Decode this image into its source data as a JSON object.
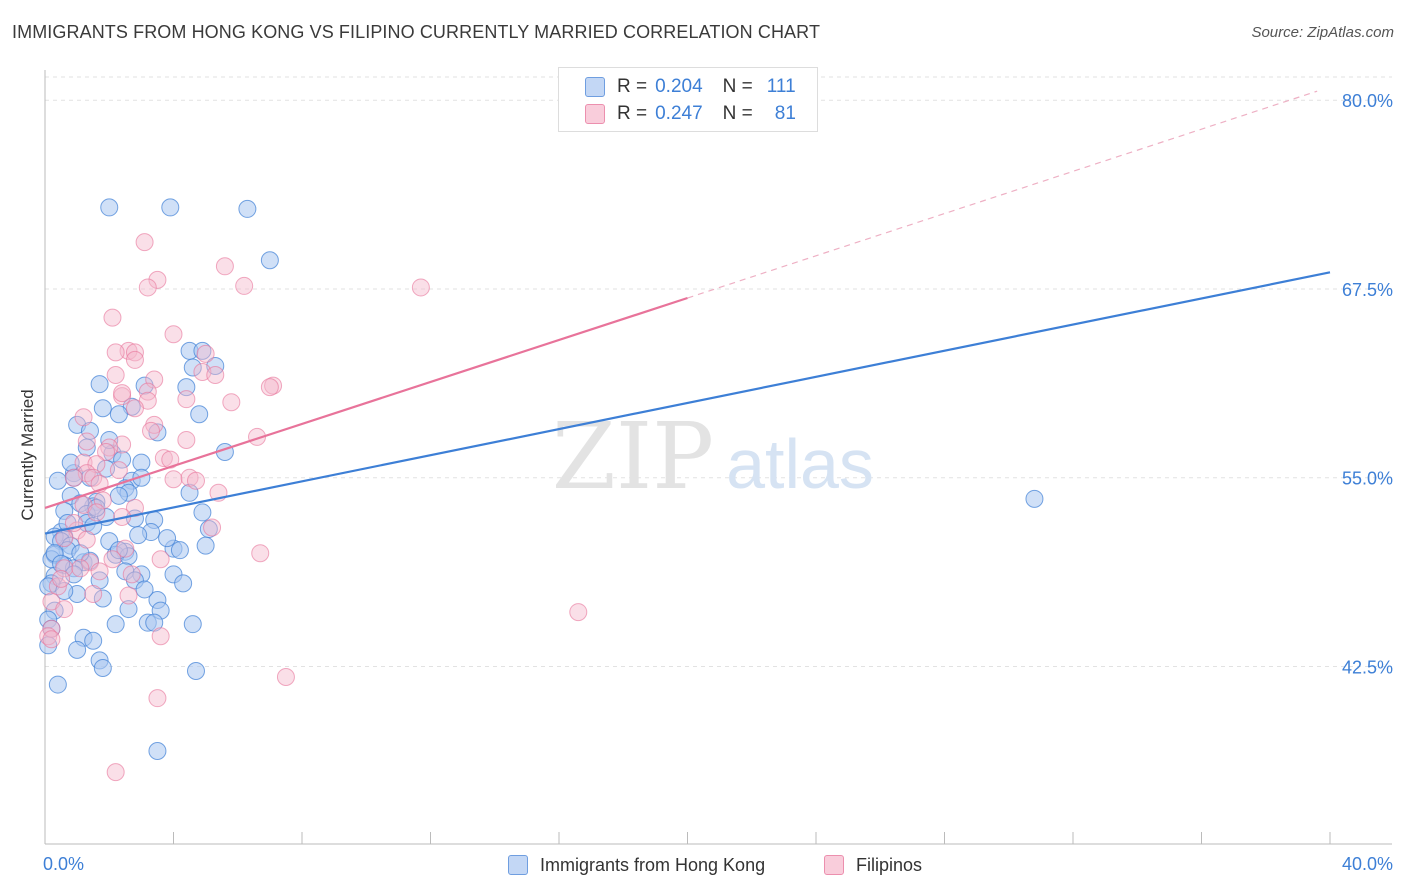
{
  "title": "IMMIGRANTS FROM HONG KONG VS FILIPINO CURRENTLY MARRIED CORRELATION CHART",
  "source": "Source: ZipAtlas.com",
  "watermark": {
    "zip": "ZIP",
    "atlas": "atlas"
  },
  "legend": {
    "series1": {
      "r_label": "R =",
      "r_value": "0.204",
      "n_label": "N =",
      "n_value": "111"
    },
    "series2": {
      "r_label": "R =",
      "r_value": "0.247",
      "n_label": "N =",
      "n_value": "81"
    }
  },
  "bottom_legend": {
    "series1": "Immigrants from Hong Kong",
    "series2": "Filipinos"
  },
  "colors": {
    "blue": "#3d7fd6",
    "blue_fill": "#a9c6f0",
    "pink": "#e8739a",
    "pink_fill": "#f5b7cb",
    "accent_text": "#3d7fd6"
  },
  "chart_data": {
    "type": "scatter",
    "title": "IMMIGRANTS FROM HONG KONG VS FILIPINO CURRENTLY MARRIED CORRELATION CHART",
    "xlabel": "",
    "ylabel": "Currently Married",
    "xlim": [
      0,
      40
    ],
    "ylim": [
      32,
      82
    ],
    "x_tick_labels": [
      "0.0%",
      "40.0%"
    ],
    "y_ticks": [
      42.5,
      55.0,
      67.5,
      80.0
    ],
    "y_tick_labels": [
      "42.5%",
      "55.0%",
      "67.5%",
      "80.0%"
    ],
    "series": [
      {
        "name": "Immigrants from Hong Kong",
        "r": 0.204,
        "n": 111,
        "trend": {
          "x": [
            0,
            40
          ],
          "y": [
            51.3,
            68.6
          ]
        },
        "points": [
          [
            2.0,
            72.9
          ],
          [
            3.9,
            72.9
          ],
          [
            6.3,
            72.8
          ],
          [
            7.0,
            69.4
          ],
          [
            4.5,
            63.4
          ],
          [
            4.9,
            63.4
          ],
          [
            5.3,
            62.4
          ],
          [
            4.6,
            62.3
          ],
          [
            3.1,
            61.1
          ],
          [
            1.7,
            61.2
          ],
          [
            2.7,
            59.7
          ],
          [
            1.8,
            59.6
          ],
          [
            2.3,
            59.2
          ],
          [
            4.8,
            59.2
          ],
          [
            1.0,
            58.5
          ],
          [
            1.4,
            58.1
          ],
          [
            2.1,
            56.6
          ],
          [
            5.6,
            56.7
          ],
          [
            2.4,
            56.2
          ],
          [
            1.3,
            57.0
          ],
          [
            3.0,
            56.0
          ],
          [
            0.9,
            55.3
          ],
          [
            0.9,
            55.0
          ],
          [
            2.7,
            54.8
          ],
          [
            3.0,
            55.0
          ],
          [
            4.5,
            54.0
          ],
          [
            2.5,
            54.3
          ],
          [
            2.6,
            54.0
          ],
          [
            0.8,
            53.8
          ],
          [
            1.6,
            53.4
          ],
          [
            1.5,
            53.1
          ],
          [
            1.1,
            53.3
          ],
          [
            0.6,
            52.8
          ],
          [
            1.3,
            52.6
          ],
          [
            2.8,
            52.3
          ],
          [
            4.9,
            52.7
          ],
          [
            1.9,
            52.4
          ],
          [
            3.4,
            52.2
          ],
          [
            1.3,
            52.0
          ],
          [
            1.5,
            51.8
          ],
          [
            5.1,
            51.6
          ],
          [
            3.3,
            51.4
          ],
          [
            0.5,
            51.4
          ],
          [
            0.6,
            51.1
          ],
          [
            0.3,
            51.1
          ],
          [
            0.5,
            50.8
          ],
          [
            0.8,
            50.5
          ],
          [
            0.7,
            50.2
          ],
          [
            0.3,
            49.9
          ],
          [
            2.0,
            50.8
          ],
          [
            2.5,
            50.1
          ],
          [
            2.2,
            49.9
          ],
          [
            2.6,
            49.8
          ],
          [
            4.0,
            50.3
          ],
          [
            4.2,
            50.2
          ],
          [
            0.2,
            49.6
          ],
          [
            1.2,
            49.4
          ],
          [
            1.4,
            49.5
          ],
          [
            0.6,
            49.2
          ],
          [
            0.9,
            49.0
          ],
          [
            2.5,
            48.8
          ],
          [
            3.0,
            48.6
          ],
          [
            2.8,
            48.2
          ],
          [
            0.3,
            48.5
          ],
          [
            0.2,
            48.0
          ],
          [
            4.0,
            48.6
          ],
          [
            1.0,
            47.3
          ],
          [
            1.8,
            47.0
          ],
          [
            3.5,
            46.9
          ],
          [
            3.6,
            46.2
          ],
          [
            0.1,
            47.8
          ],
          [
            0.3,
            46.2
          ],
          [
            0.1,
            45.6
          ],
          [
            2.2,
            45.3
          ],
          [
            3.2,
            45.4
          ],
          [
            3.4,
            45.4
          ],
          [
            4.6,
            45.3
          ],
          [
            1.2,
            44.4
          ],
          [
            1.0,
            43.6
          ],
          [
            0.1,
            43.9
          ],
          [
            1.7,
            42.9
          ],
          [
            1.8,
            42.4
          ],
          [
            4.7,
            42.2
          ],
          [
            0.4,
            41.3
          ],
          [
            3.5,
            36.9
          ],
          [
            30.8,
            53.6
          ],
          [
            0.3,
            50.0
          ],
          [
            0.5,
            49.3
          ],
          [
            1.6,
            53.0
          ],
          [
            2.3,
            50.2
          ],
          [
            2.9,
            51.2
          ],
          [
            3.8,
            51.0
          ],
          [
            0.7,
            52.0
          ],
          [
            1.1,
            50.0
          ],
          [
            1.4,
            55.0
          ],
          [
            2.0,
            57.5
          ],
          [
            3.5,
            58.0
          ],
          [
            4.4,
            61.0
          ],
          [
            1.9,
            55.6
          ],
          [
            0.4,
            54.8
          ],
          [
            2.3,
            53.8
          ],
          [
            0.9,
            48.6
          ],
          [
            3.1,
            47.6
          ],
          [
            1.7,
            48.2
          ],
          [
            0.6,
            47.5
          ],
          [
            4.3,
            48.0
          ],
          [
            5.0,
            50.5
          ],
          [
            2.6,
            46.3
          ],
          [
            1.5,
            44.2
          ],
          [
            0.2,
            45.0
          ],
          [
            0.8,
            56.0
          ]
        ]
      },
      {
        "name": "Filipinos",
        "r": 0.247,
        "n": 81,
        "trend_solid": {
          "x": [
            0,
            20
          ],
          "y": [
            53.0,
            66.9
          ]
        },
        "trend_dashed": {
          "x": [
            20,
            39.6
          ],
          "y": [
            66.9,
            80.6
          ]
        },
        "points": [
          [
            3.1,
            70.6
          ],
          [
            5.6,
            69.0
          ],
          [
            3.5,
            68.1
          ],
          [
            3.2,
            67.6
          ],
          [
            6.2,
            67.7
          ],
          [
            11.7,
            67.6
          ],
          [
            2.1,
            65.6
          ],
          [
            4.0,
            64.5
          ],
          [
            2.6,
            63.4
          ],
          [
            2.2,
            63.3
          ],
          [
            2.8,
            63.3
          ],
          [
            2.8,
            62.8
          ],
          [
            5.0,
            63.2
          ],
          [
            4.9,
            62.0
          ],
          [
            2.2,
            61.8
          ],
          [
            3.4,
            61.5
          ],
          [
            7.1,
            61.1
          ],
          [
            7.0,
            61.0
          ],
          [
            3.2,
            60.7
          ],
          [
            2.4,
            60.4
          ],
          [
            4.4,
            60.2
          ],
          [
            5.8,
            60.0
          ],
          [
            3.2,
            60.1
          ],
          [
            2.8,
            59.6
          ],
          [
            1.2,
            59.0
          ],
          [
            3.4,
            58.5
          ],
          [
            3.3,
            58.1
          ],
          [
            6.6,
            57.7
          ],
          [
            4.4,
            57.5
          ],
          [
            2.4,
            57.2
          ],
          [
            1.3,
            57.4
          ],
          [
            2.0,
            57.0
          ],
          [
            1.9,
            56.7
          ],
          [
            3.7,
            56.3
          ],
          [
            1.2,
            56.0
          ],
          [
            1.6,
            55.9
          ],
          [
            2.3,
            55.5
          ],
          [
            1.3,
            55.3
          ],
          [
            1.5,
            55.0
          ],
          [
            0.9,
            55.0
          ],
          [
            4.0,
            54.9
          ],
          [
            4.5,
            55.0
          ],
          [
            4.7,
            54.8
          ],
          [
            5.4,
            54.0
          ],
          [
            1.8,
            53.5
          ],
          [
            1.2,
            53.2
          ],
          [
            2.8,
            53.0
          ],
          [
            1.6,
            52.7
          ],
          [
            2.4,
            52.4
          ],
          [
            1.0,
            51.5
          ],
          [
            5.2,
            51.7
          ],
          [
            1.3,
            50.9
          ],
          [
            0.6,
            51.0
          ],
          [
            2.5,
            50.3
          ],
          [
            6.7,
            50.0
          ],
          [
            2.1,
            49.6
          ],
          [
            3.6,
            49.6
          ],
          [
            1.4,
            49.4
          ],
          [
            0.6,
            49.0
          ],
          [
            1.7,
            48.8
          ],
          [
            2.7,
            48.6
          ],
          [
            0.4,
            47.8
          ],
          [
            1.5,
            47.3
          ],
          [
            2.6,
            47.2
          ],
          [
            0.2,
            46.8
          ],
          [
            0.6,
            46.3
          ],
          [
            16.6,
            46.1
          ],
          [
            0.2,
            45.0
          ],
          [
            0.1,
            44.5
          ],
          [
            3.6,
            44.5
          ],
          [
            0.2,
            44.3
          ],
          [
            7.5,
            41.8
          ],
          [
            3.5,
            40.4
          ],
          [
            2.2,
            35.5
          ],
          [
            5.3,
            61.8
          ],
          [
            0.9,
            52.0
          ],
          [
            1.1,
            49.0
          ],
          [
            3.9,
            56.2
          ],
          [
            2.4,
            60.6
          ],
          [
            1.7,
            54.6
          ],
          [
            0.5,
            48.3
          ]
        ]
      }
    ]
  }
}
